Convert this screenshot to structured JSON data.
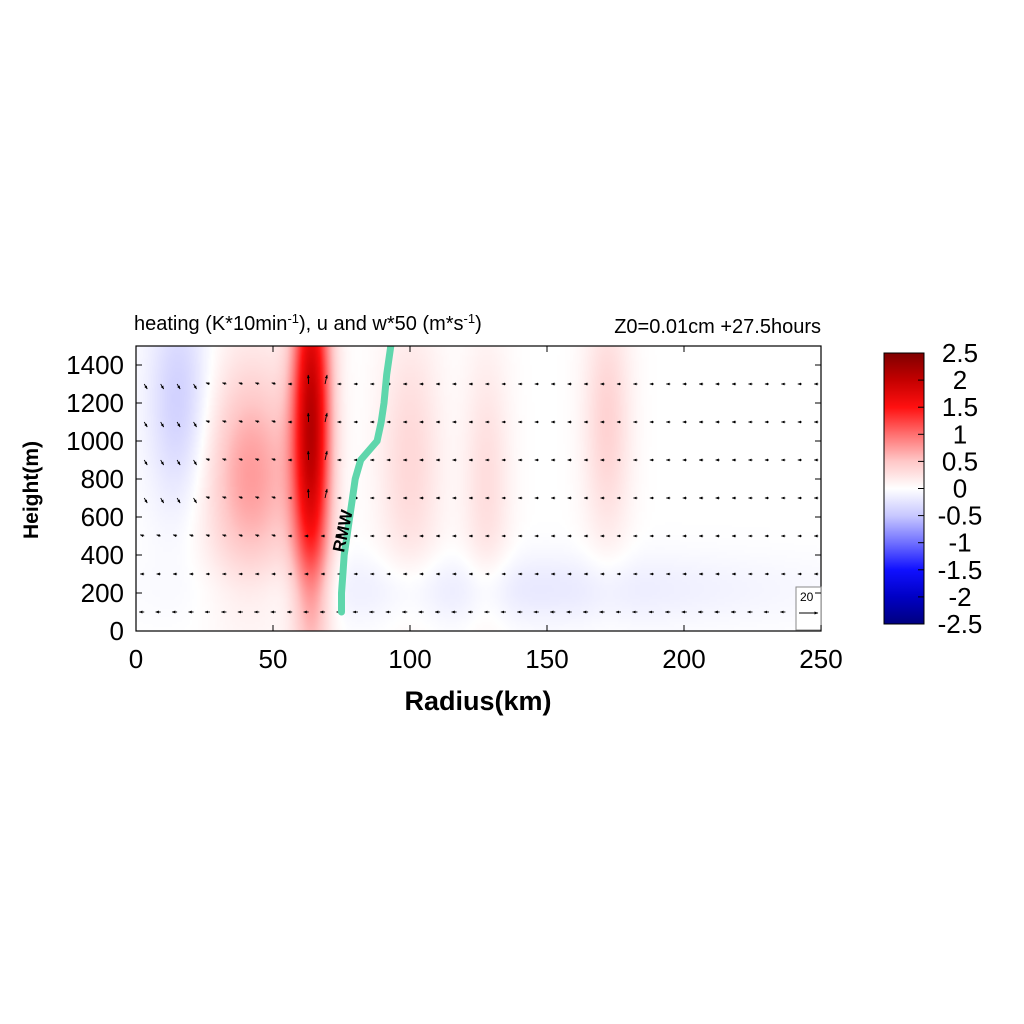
{
  "chart_data": {
    "type": "heatmap",
    "title_main": "heating (K*10min",
    "title_sup1": "-1",
    "title_mid": "), u and w*50 (m*s",
    "title_sup2": "-1",
    "title_end": ")",
    "title_right": "Z0=0.01cm  +27.5hours",
    "xlabel": "Radius(km)",
    "ylabel": "Height(m)",
    "xlim": [
      0,
      250
    ],
    "ylim": [
      0,
      1500
    ],
    "xticks": [
      "0",
      "50",
      "100",
      "150",
      "200",
      "250"
    ],
    "yticks": [
      "0",
      "200",
      "400",
      "600",
      "800",
      "1000",
      "1200",
      "1400"
    ],
    "colorbar": {
      "min": -2.5,
      "max": 2.5,
      "ticks": [
        "2.5",
        "2",
        "1.5",
        "1",
        "0.5",
        "0",
        "-0.5",
        "-1",
        "-1.5",
        "-2",
        "-2.5"
      ]
    },
    "heating_features": [
      {
        "x": 64,
        "z": 1100,
        "sx": 5,
        "sz": 700,
        "value": 2.0
      },
      {
        "x": 42,
        "z": 820,
        "sx": 12,
        "sz": 420,
        "value": 0.75
      },
      {
        "x": 100,
        "z": 900,
        "sx": 8,
        "sz": 500,
        "value": 0.35
      },
      {
        "x": 128,
        "z": 780,
        "sx": 6,
        "sz": 500,
        "value": 0.3
      },
      {
        "x": 172,
        "z": 1100,
        "sx": 6,
        "sz": 450,
        "value": 0.4
      },
      {
        "x": 16,
        "z": 1200,
        "sx": 8,
        "sz": 400,
        "value": -0.45
      },
      {
        "x": 138,
        "z": 220,
        "sx": 70,
        "sz": 130,
        "value": -0.2
      }
    ],
    "rmw_label": "RMW",
    "rmw_line": {
      "x": [
        75,
        75,
        75.5,
        76,
        77,
        78,
        79,
        80,
        82,
        85,
        88,
        89.5,
        90.5,
        91.5,
        93
      ],
      "z": [
        100,
        200,
        300,
        400,
        500,
        600,
        700,
        800,
        900,
        950,
        1000,
        1100,
        1200,
        1350,
        1500
      ]
    },
    "arrow_rows_z": [
      100,
      300,
      500,
      700,
      900,
      1100,
      1300
    ],
    "vector_reference_label": "20",
    "vector_scale_note": "u and w*50",
    "colors": {
      "rmw_line": "#5fd6ac",
      "cmap_low": "#00007f",
      "cmap_mid": "#ffffff",
      "cmap_high": "#7f0000"
    }
  }
}
